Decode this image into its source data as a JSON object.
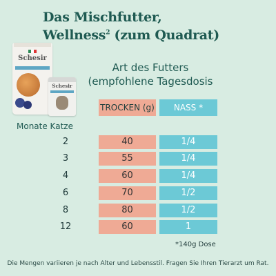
{
  "title": {
    "line1": "Das Mischfutter,",
    "line2_before": "Wellness",
    "line2_sup": "2",
    "line2_after": " (zum Quadrat)"
  },
  "products": {
    "bag_brand": "Schesir",
    "can_brand": "Schesir"
  },
  "header": {
    "line1": "Art des Futters",
    "line2": "(empfohlene Tagesdosis"
  },
  "columns": {
    "dry": "TROCKEN (g)",
    "wet": "NASS *"
  },
  "age_label": "Monate Katze",
  "rows": [
    {
      "age": "2",
      "dry": "40",
      "wet": "1/4"
    },
    {
      "age": "3",
      "dry": "55",
      "wet": "1/4"
    },
    {
      "age": "4",
      "dry": "60",
      "wet": "1/4"
    },
    {
      "age": "6",
      "dry": "70",
      "wet": "1/2"
    },
    {
      "age": "8",
      "dry": "80",
      "wet": "1/2"
    },
    {
      "age": "12",
      "dry": "60",
      "wet": "1"
    }
  ],
  "footnote": "*140g Dose",
  "disclaimer": "Die Mengen variieren je nach Alter und Lebensstil. Fragen Sie Ihren Tierarzt um Rat.",
  "colors": {
    "background": "#d8ece2",
    "dry": "#efaa95",
    "wet": "#6cc9d6",
    "title": "#1f5a52"
  }
}
